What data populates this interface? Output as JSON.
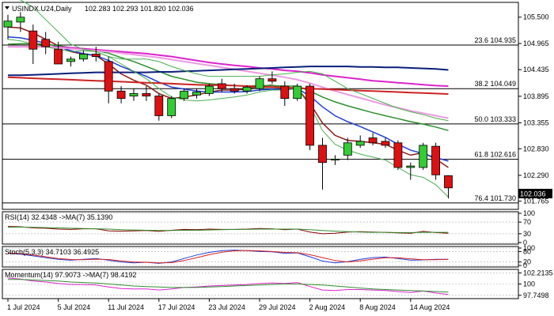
{
  "chart_data": {
    "type": "candlestick",
    "title": "USINDX.U24,Daily",
    "ohlc_label": "102.283 102.293 101.820 102.036",
    "price_ylim": [
      101.6,
      105.8
    ],
    "price_ticks": [
      "105.500",
      "104.965",
      "104.435",
      "103.895",
      "103.355",
      "102.830",
      "102.290",
      "101.765"
    ],
    "last_price": "102.036",
    "x_labels": [
      "1 Jul 2024",
      "5 Jul 2024",
      "11 Jul 2024",
      "17 Jul 2024",
      "23 Jul 2024",
      "29 Jul 2024",
      "2 Aug 2024",
      "8 Aug 2024",
      "14 Aug 2024"
    ],
    "fib_levels": [
      {
        "label": "23.6 104.935",
        "value": 104.935
      },
      {
        "label": "38.2 104.049",
        "value": 104.049
      },
      {
        "label": "50.0 103.333",
        "value": 103.333
      },
      {
        "label": "61.8 102.616",
        "value": 102.616
      },
      {
        "label": "76.4 101.730",
        "value": 101.73
      }
    ],
    "candles": [
      {
        "o": 105.3,
        "h": 105.55,
        "l": 105.05,
        "c": 105.42
      },
      {
        "o": 105.4,
        "h": 105.6,
        "l": 105.2,
        "c": 105.5
      },
      {
        "o": 105.22,
        "h": 105.35,
        "l": 104.55,
        "c": 104.85
      },
      {
        "o": 105.05,
        "h": 105.2,
        "l": 104.75,
        "c": 104.9
      },
      {
        "o": 104.85,
        "h": 105.0,
        "l": 104.55,
        "c": 104.55
      },
      {
        "o": 104.6,
        "h": 104.7,
        "l": 104.5,
        "c": 104.65
      },
      {
        "o": 104.65,
        "h": 104.82,
        "l": 104.6,
        "c": 104.75
      },
      {
        "o": 104.75,
        "h": 104.9,
        "l": 104.6,
        "c": 104.7
      },
      {
        "o": 104.6,
        "h": 104.7,
        "l": 103.75,
        "c": 104.0
      },
      {
        "o": 104.0,
        "h": 104.1,
        "l": 103.75,
        "c": 103.85
      },
      {
        "o": 103.9,
        "h": 104.05,
        "l": 103.8,
        "c": 103.95
      },
      {
        "o": 103.95,
        "h": 104.1,
        "l": 103.8,
        "c": 103.9
      },
      {
        "o": 103.9,
        "h": 103.95,
        "l": 103.4,
        "c": 103.5
      },
      {
        "o": 103.5,
        "h": 103.9,
        "l": 103.45,
        "c": 103.85
      },
      {
        "o": 103.85,
        "h": 104.05,
        "l": 103.8,
        "c": 104.0
      },
      {
        "o": 103.92,
        "h": 104.05,
        "l": 103.85,
        "c": 103.98
      },
      {
        "o": 103.95,
        "h": 104.15,
        "l": 103.9,
        "c": 104.1
      },
      {
        "o": 104.15,
        "h": 104.25,
        "l": 103.98,
        "c": 104.05
      },
      {
        "o": 104.05,
        "h": 104.15,
        "l": 103.95,
        "c": 104.0
      },
      {
        "o": 104.0,
        "h": 104.12,
        "l": 103.95,
        "c": 104.08
      },
      {
        "o": 104.05,
        "h": 104.3,
        "l": 104.0,
        "c": 104.25
      },
      {
        "o": 104.25,
        "h": 104.4,
        "l": 104.15,
        "c": 104.2
      },
      {
        "o": 104.1,
        "h": 104.2,
        "l": 103.7,
        "c": 103.85
      },
      {
        "o": 103.85,
        "h": 104.15,
        "l": 103.8,
        "c": 104.1
      },
      {
        "o": 104.1,
        "h": 104.15,
        "l": 102.8,
        "c": 102.9
      },
      {
        "o": 102.9,
        "h": 103.05,
        "l": 102.0,
        "c": 102.55
      },
      {
        "o": 102.6,
        "h": 102.7,
        "l": 102.5,
        "c": 102.62
      },
      {
        "o": 102.7,
        "h": 103.05,
        "l": 102.6,
        "c": 102.95
      },
      {
        "o": 102.9,
        "h": 103.1,
        "l": 102.85,
        "c": 102.98
      },
      {
        "o": 103.05,
        "h": 103.15,
        "l": 102.9,
        "c": 102.95
      },
      {
        "o": 102.98,
        "h": 103.05,
        "l": 102.85,
        "c": 102.9
      },
      {
        "o": 102.95,
        "h": 103.0,
        "l": 102.4,
        "c": 102.45
      },
      {
        "o": 102.45,
        "h": 102.55,
        "l": 102.2,
        "c": 102.48
      },
      {
        "o": 102.45,
        "h": 102.95,
        "l": 102.4,
        "c": 102.9
      },
      {
        "o": 102.88,
        "h": 102.95,
        "l": 102.2,
        "c": 102.3
      },
      {
        "o": 102.283,
        "h": 102.293,
        "l": 101.82,
        "c": 102.036
      }
    ],
    "series": [
      {
        "color": "#8b1a1a",
        "values": [
          105.3,
          105.28,
          105.18,
          105.05,
          104.92,
          104.8,
          104.75,
          104.72,
          104.55,
          104.35,
          104.22,
          104.12,
          103.95,
          103.85,
          103.88,
          103.92,
          103.98,
          104.02,
          104.02,
          104.04,
          104.1,
          104.12,
          104.05,
          104.05,
          103.75,
          103.35,
          103.1,
          103.0,
          102.98,
          102.95,
          102.92,
          102.8,
          102.7,
          102.75,
          102.62,
          102.45
        ]
      },
      {
        "color": "#1f3fd6",
        "values": [
          105.1,
          105.08,
          105.03,
          104.97,
          104.9,
          104.82,
          104.76,
          104.72,
          104.62,
          104.5,
          104.4,
          104.3,
          104.18,
          104.08,
          104.04,
          104.0,
          103.98,
          103.98,
          103.98,
          103.99,
          104.02,
          104.04,
          104.03,
          104.05,
          103.9,
          103.68,
          103.5,
          103.38,
          103.28,
          103.17,
          103.06,
          102.92,
          102.8,
          102.73,
          102.65,
          102.58
        ]
      },
      {
        "color": "#2d8f2d",
        "values": [
          104.95,
          104.96,
          104.96,
          104.95,
          104.92,
          104.88,
          104.85,
          104.82,
          104.77,
          104.68,
          104.6,
          104.5,
          104.4,
          104.3,
          104.24,
          104.18,
          104.15,
          104.13,
          104.11,
          104.1,
          104.11,
          104.11,
          104.1,
          104.1,
          104.0,
          103.88,
          103.78,
          103.7,
          103.63,
          103.56,
          103.5,
          103.44,
          103.38,
          103.33,
          103.27,
          103.2
        ]
      },
      {
        "color": "#dd22cc",
        "values": [
          104.9,
          104.9,
          104.9,
          104.9,
          104.89,
          104.88,
          104.86,
          104.84,
          104.82,
          104.8,
          104.78,
          104.76,
          104.73,
          104.7,
          104.66,
          104.62,
          104.58,
          104.55,
          104.52,
          104.5,
          104.47,
          104.45,
          104.42,
          104.4,
          104.37,
          104.33,
          104.3,
          104.27,
          104.24,
          104.21,
          104.19,
          104.17,
          104.15,
          104.13,
          104.11,
          104.1
        ]
      },
      {
        "color": "#ee99e0",
        "values": [
          104.9,
          104.9,
          104.9,
          104.9,
          104.88,
          104.86,
          104.84,
          104.82,
          104.8,
          104.77,
          104.74,
          104.71,
          104.68,
          104.64,
          104.6,
          104.56,
          104.52,
          104.48,
          104.44,
          104.4,
          104.36,
          104.32,
          104.28,
          104.23,
          104.16,
          104.08,
          104.0,
          103.93,
          103.86,
          103.79,
          103.72,
          103.66,
          103.6,
          103.55,
          103.5,
          103.45
        ]
      },
      {
        "color": "#0a1f7a",
        "values": [
          104.32,
          104.32,
          104.33,
          104.34,
          104.35,
          104.36,
          104.37,
          104.38,
          104.38,
          104.38,
          104.38,
          104.38,
          104.39,
          104.39,
          104.4,
          104.41,
          104.42,
          104.43,
          104.44,
          104.45,
          104.46,
          104.47,
          104.48,
          104.49,
          104.5,
          104.5,
          104.5,
          104.5,
          104.49,
          104.49,
          104.48,
          104.48,
          104.47,
          104.46,
          104.45,
          104.43
        ]
      },
      {
        "color": "#cc2222",
        "values": [
          104.28,
          104.27,
          104.26,
          104.25,
          104.24,
          104.23,
          104.22,
          104.21,
          104.2,
          104.19,
          104.18,
          104.17,
          104.16,
          104.15,
          104.14,
          104.13,
          104.12,
          104.12,
          104.11,
          104.1,
          104.09,
          104.08,
          104.07,
          104.06,
          104.05,
          104.04,
          104.03,
          104.02,
          104.01,
          104.0,
          103.99,
          103.98,
          103.97,
          103.96,
          103.95,
          103.94
        ]
      },
      {
        "color": "#4caf50",
        "values": [
          105.05,
          105.02,
          104.95,
          104.9,
          104.85,
          104.8,
          104.82,
          104.8,
          104.7,
          104.55,
          104.4,
          104.25,
          104.05,
          103.88,
          103.82,
          103.8,
          103.82,
          103.85,
          103.88,
          103.92,
          103.98,
          104.02,
          104.02,
          104.05,
          103.7,
          103.2,
          102.92,
          102.8,
          102.72,
          102.66,
          102.6,
          102.45,
          102.3,
          102.25,
          102.1,
          101.85
        ]
      },
      {
        "color": "#4caf50",
        "values": [
          105.9,
          105.85,
          105.7,
          105.45,
          105.2,
          104.95,
          104.85,
          104.8,
          104.7,
          104.65,
          104.65,
          104.65,
          104.6,
          104.5,
          104.42,
          104.35,
          104.3,
          104.3,
          104.3,
          104.3,
          104.3,
          104.33,
          104.35,
          104.38,
          104.4,
          104.35,
          104.2,
          104.05,
          103.95,
          103.85,
          103.75,
          103.65,
          103.58,
          103.52,
          103.45,
          103.4
        ]
      }
    ],
    "panels": [
      {
        "label": "RSI(14) 32.4348 ->MA(7) 35.1390",
        "ticks": [
          "100",
          "70",
          "30",
          "0"
        ],
        "ylim": [
          0,
          100
        ],
        "series": [
          {
            "color": "#8b0000",
            "values": [
              55,
              54,
              50,
              49,
              46,
              45,
              47,
              47,
              40,
              39,
              40,
              41,
              38,
              42,
              45,
              44,
              46,
              45,
              45,
              46,
              48,
              47,
              44,
              46,
              36,
              30,
              32,
              36,
              37,
              36,
              35,
              33,
              32,
              38,
              34,
              32
            ]
          },
          {
            "color": "#2d8f2d",
            "values": [
              52,
              53,
              52,
              51,
              50,
              49,
              48,
              47,
              46,
              44,
              43,
              42,
              41,
              41,
              42,
              42,
              43,
              44,
              45,
              45,
              46,
              46,
              46,
              46,
              44,
              41,
              39,
              37,
              36,
              35,
              35,
              34,
              34,
              35,
              35,
              35
            ]
          }
        ]
      },
      {
        "label": "Stoch(5,3,3) 34.7103 36.4925",
        "ticks": [
          "100",
          "80",
          "20",
          "0"
        ],
        "ylim": [
          0,
          100
        ],
        "series": [
          {
            "color": "#1f3fd6",
            "values": [
              70,
              65,
              55,
              45,
              35,
              30,
              35,
              40,
              30,
              20,
              15,
              18,
              12,
              20,
              40,
              60,
              75,
              85,
              88,
              85,
              80,
              78,
              70,
              72,
              50,
              25,
              15,
              22,
              35,
              45,
              48,
              40,
              30,
              32,
              35,
              35
            ]
          },
          {
            "color": "#dd2222",
            "values": [
              72,
              68,
              60,
              50,
              40,
              34,
              33,
              36,
              34,
              26,
              20,
              18,
              15,
              16,
              28,
              45,
              62,
              76,
              84,
              86,
              84,
              80,
              75,
              73,
              62,
              45,
              28,
              20,
              26,
              36,
              44,
              44,
              38,
              33,
              33,
              35
            ]
          }
        ]
      },
      {
        "label": "Momentum(14) 97.9073 ->MA(7) 98.4192",
        "ticks": [
          "102.2135",
          "100",
          "97.7498"
        ],
        "ylim": [
          97.4,
          102.6
        ],
        "series": [
          {
            "color": "#dd22cc",
            "values": [
              101.2,
              101.0,
              100.6,
              100.4,
              100.1,
              99.9,
              99.9,
              99.8,
              99.4,
              99.1,
              99.0,
              99.0,
              98.8,
              99.0,
              99.3,
              99.4,
              99.6,
              99.7,
              99.8,
              99.9,
              100.1,
              100.2,
              100.1,
              100.3,
              99.5,
              98.8,
              98.7,
              98.9,
              98.9,
              98.8,
              98.7,
              98.5,
              98.3,
              98.6,
              98.2,
              97.9
            ]
          },
          {
            "color": "#2d8f2d",
            "values": [
              100.9,
              100.9,
              100.8,
              100.7,
              100.6,
              100.4,
              100.3,
              100.2,
              100.0,
              99.8,
              99.6,
              99.5,
              99.4,
              99.3,
              99.3,
              99.3,
              99.4,
              99.5,
              99.6,
              99.7,
              99.8,
              99.9,
              100.0,
              100.0,
              99.9,
              99.8,
              99.6,
              99.4,
              99.2,
              99.0,
              98.9,
              98.8,
              98.7,
              98.6,
              98.5,
              98.4
            ]
          }
        ]
      }
    ]
  }
}
